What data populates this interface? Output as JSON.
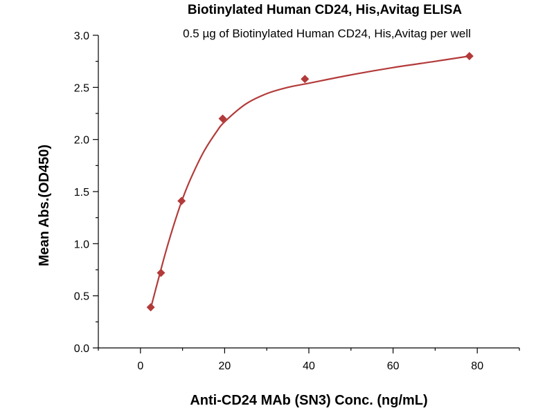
{
  "chart_data": {
    "type": "scatter",
    "title": "Biotinylated Human CD24, His,Avitag ELISA",
    "subtitle": "0.5 µg of Biotinylated Human CD24, His,Avitag per well",
    "xlabel": "Anti-CD24 MAb (SN3) Conc. (ng/mL)",
    "ylabel": "Mean Abs.(OD450)",
    "xlim": [
      -10,
      90
    ],
    "ylim": [
      0,
      3.0
    ],
    "x_ticks": [
      0,
      20,
      40,
      60,
      80
    ],
    "y_ticks": [
      0.0,
      0.5,
      1.0,
      1.5,
      2.0,
      2.5,
      3.0
    ],
    "x_tick_labels": [
      "0",
      "20",
      "40",
      "60",
      "80"
    ],
    "y_tick_labels": [
      "0.0",
      "0.5",
      "1.0",
      "1.5",
      "2.0",
      "2.5",
      "3.0"
    ],
    "grid": false,
    "series": [
      {
        "marker": "diamond",
        "color": "#b33a3a",
        "x": [
          2.44,
          4.88,
          9.77,
          19.53,
          39.06,
          78.13
        ],
        "y": [
          0.39,
          0.72,
          1.41,
          2.2,
          2.58,
          2.8
        ]
      }
    ],
    "fit_curve": {
      "color": "#b33a3a",
      "x": [
        2.44,
        4.0,
        6.0,
        8.0,
        10.0,
        12.0,
        15.0,
        18.0,
        20.0,
        25.0,
        30.0,
        35.0,
        40.0,
        50.0,
        60.0,
        70.0,
        78.13
      ],
      "y": [
        0.38,
        0.62,
        0.92,
        1.19,
        1.43,
        1.63,
        1.88,
        2.07,
        2.17,
        2.34,
        2.44,
        2.5,
        2.54,
        2.62,
        2.69,
        2.75,
        2.8
      ]
    }
  }
}
